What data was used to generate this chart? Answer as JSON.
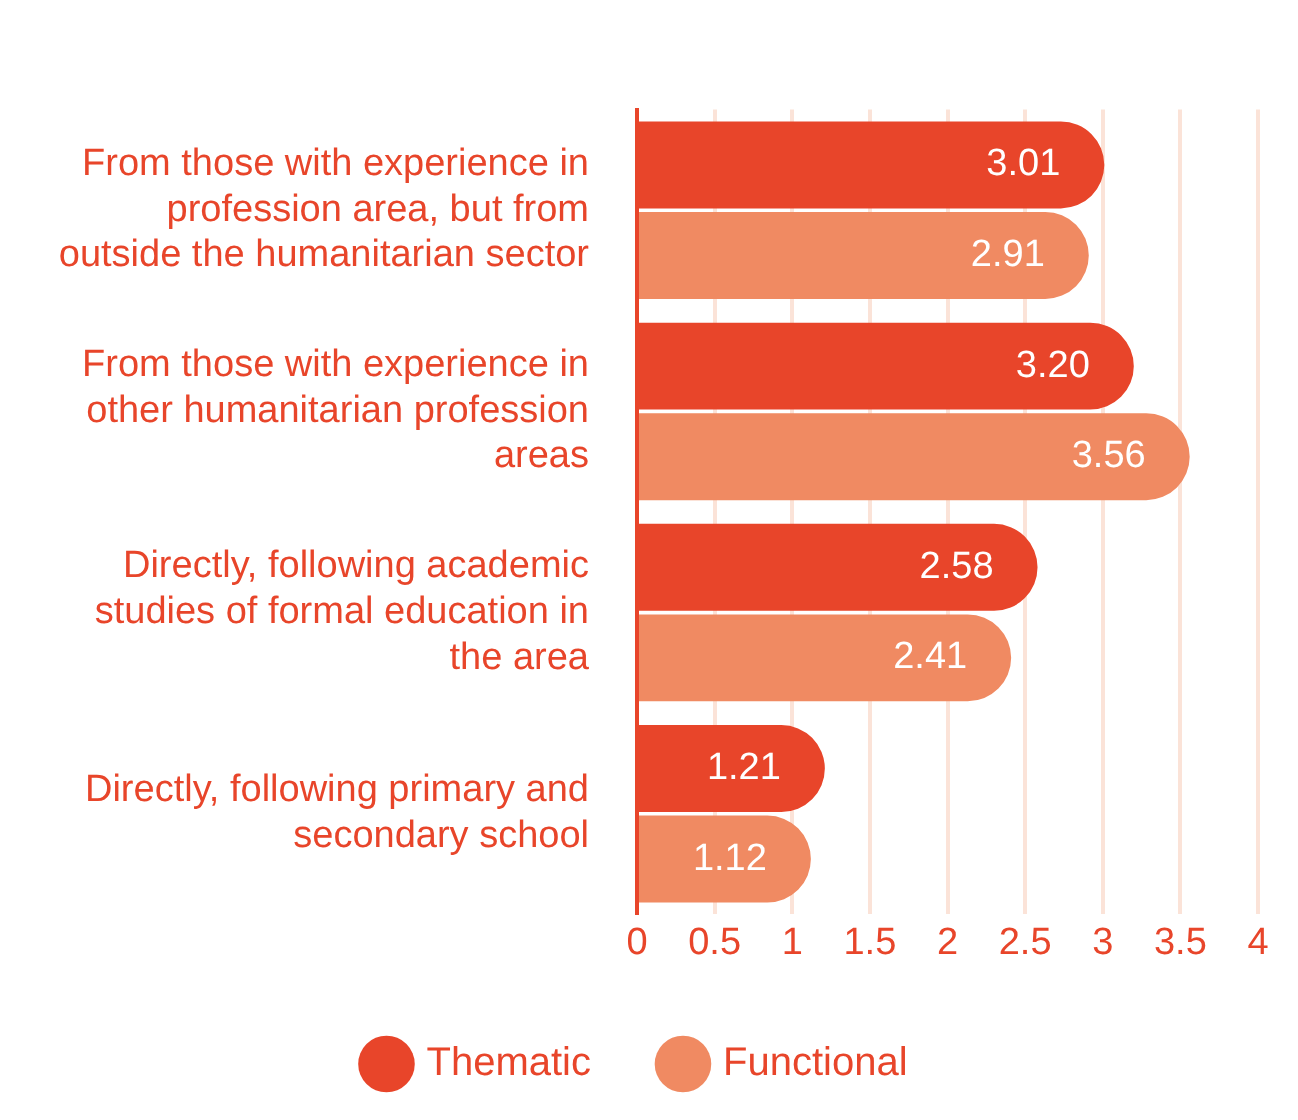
{
  "chart_data": {
    "type": "bar",
    "orientation": "horizontal",
    "categories": [
      "From those with experience in profession area, but from outside the humanitarian sector",
      "From those with experience in other humanitarian profession areas",
      "Directly, following academic studies of formal education in the area",
      "Directly, following primary and secondary school"
    ],
    "series": [
      {
        "name": "Thematic",
        "color": "#e8452a",
        "values": [
          3.01,
          3.2,
          2.58,
          1.21
        ],
        "value_labels": [
          "3.01",
          "3.20",
          "2.58",
          "1.21"
        ]
      },
      {
        "name": "Functional",
        "color": "#f08a62",
        "values": [
          2.91,
          3.56,
          2.41,
          1.12
        ],
        "value_labels": [
          "2.91",
          "3.56",
          "2.41",
          "1.12"
        ]
      }
    ],
    "xlim": [
      0,
      4
    ],
    "xticks": [
      0,
      0.5,
      1,
      1.5,
      2,
      2.5,
      3,
      3.5,
      4
    ],
    "grid": "x",
    "legend": "bottom"
  }
}
